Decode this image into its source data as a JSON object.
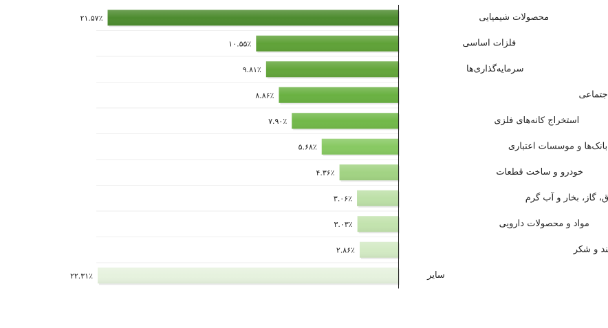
{
  "chart_data": {
    "type": "bar",
    "orientation": "horizontal",
    "categories": [
      "محصولات شیمیایی",
      "فلزات اساسی",
      "سرمایه‌گذاری‌ها",
      "بیمه و صندوق بازنشستگی بجز تامین اجتماعی",
      "استخراج کانه‌های فلزی",
      "بانک‌ها و موسسات اعتباری",
      "خودرو و ساخت قطعات",
      "عرضه برق، گاز، بخار و آب گرم",
      "مواد و محصولات دارویی",
      "محصولات غذایی و آشامیدنی بجز قند و شکر",
      "سایر"
    ],
    "values": [
      21.57,
      10.55,
      9.81,
      8.86,
      7.9,
      5.68,
      4.36,
      3.06,
      3.03,
      2.86,
      22.31
    ],
    "value_labels": [
      "۲۱.۵۷٪",
      "۱۰.۵۵٪",
      "۹.۸۱٪",
      "۸.۸۶٪",
      "۷.۹۰٪",
      "۵.۶۸٪",
      "۴.۳۶٪",
      "۳.۰۶٪",
      "۳.۰۳٪",
      "۲.۸۶٪",
      "۲۲.۳۱٪"
    ],
    "colors": [
      "#4e8c30",
      "#60a238",
      "#64a63b",
      "#6ab142",
      "#72b94a",
      "#88c962",
      "#a2d383",
      "#bde0a8",
      "#c3e3ae",
      "#d3eac4",
      "#e6f2de"
    ],
    "title": "",
    "xlabel": "",
    "ylabel": "",
    "xlim": [
      0,
      22.31
    ],
    "grid": false,
    "legend": "none"
  }
}
